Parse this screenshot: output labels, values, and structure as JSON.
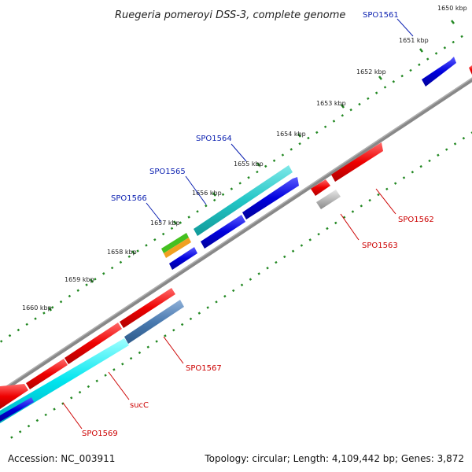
{
  "title": "Ruegeria pomeroyi DSS-3, complete genome",
  "footer": {
    "accession": "Accession: NC_003911",
    "summary": "Topology: circular; Length: 4,109,442 bp; Genes: 3,872"
  },
  "ticks": [
    "1650 kbp",
    "1651 kbp",
    "1652 kbp",
    "1653 kbp",
    "1654 kbp",
    "1655 kbp",
    "1656 kbp",
    "1657 kbp",
    "1658 kbp",
    "1659 kbp",
    "1660 kbp"
  ],
  "gene_labels": {
    "top": [
      "SPO1561",
      "SPO1564",
      "SPO1565",
      "SPO1566"
    ],
    "bottom": [
      "SPO1562",
      "SPO1563",
      "SPO1567",
      "sucC",
      "SPO1569"
    ]
  },
  "colors": {
    "forward_cds": "#0000dd",
    "reverse_cds": "#ee0000",
    "teal": "#22c6c6",
    "cyan": "#00e5ee",
    "steel": "#4a7ab0",
    "green": "#44c020",
    "orange": "#f0a020",
    "gray": "#b8b8b8",
    "backbone": "#888888",
    "tick_dots": "#228822"
  }
}
